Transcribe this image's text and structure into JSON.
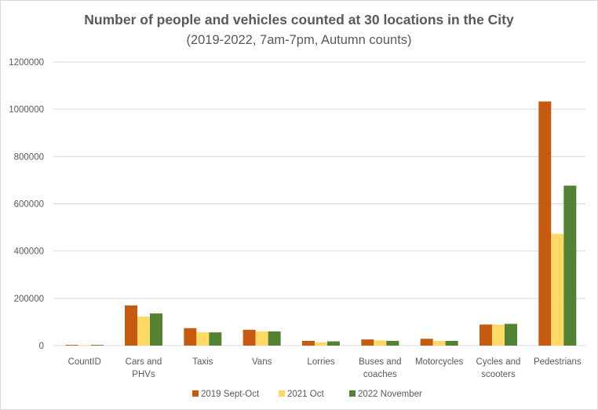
{
  "chart_data": {
    "type": "bar",
    "title": "Number of people and vehicles counted at 30 locations in the City",
    "subtitle": "(2019-2022, 7am-7pm, Autumn counts)",
    "xlabel": "",
    "ylabel": "",
    "ylim": [
      0,
      1200000
    ],
    "yticks": [
      "0",
      "200000",
      "400000",
      "600000",
      "800000",
      "1000000",
      "1200000"
    ],
    "grid": true,
    "legend_position": "bottom",
    "categories": [
      [
        "CountID"
      ],
      [
        "Cars and",
        "PHVs"
      ],
      [
        "Taxis"
      ],
      [
        "Vans"
      ],
      [
        "Lorries"
      ],
      [
        "Buses and",
        "coaches"
      ],
      [
        "Motorcycles"
      ],
      [
        "Cycles and",
        "scooters"
      ],
      [
        "Pedestrians"
      ]
    ],
    "series": [
      {
        "name": "2019 Sept-Oct",
        "color": "#C55A11",
        "values": [
          3000,
          170000,
          74000,
          67000,
          20000,
          26000,
          29000,
          89000,
          1033000
        ]
      },
      {
        "name": "2021 Oct",
        "color": "#FFD966",
        "values": [
          2000,
          123000,
          56000,
          60000,
          14000,
          22000,
          20000,
          89000,
          473000
        ]
      },
      {
        "name": "2022 November",
        "color": "#548235",
        "values": [
          3000,
          136000,
          56000,
          60000,
          18000,
          20000,
          20000,
          92000,
          677000
        ]
      }
    ]
  }
}
